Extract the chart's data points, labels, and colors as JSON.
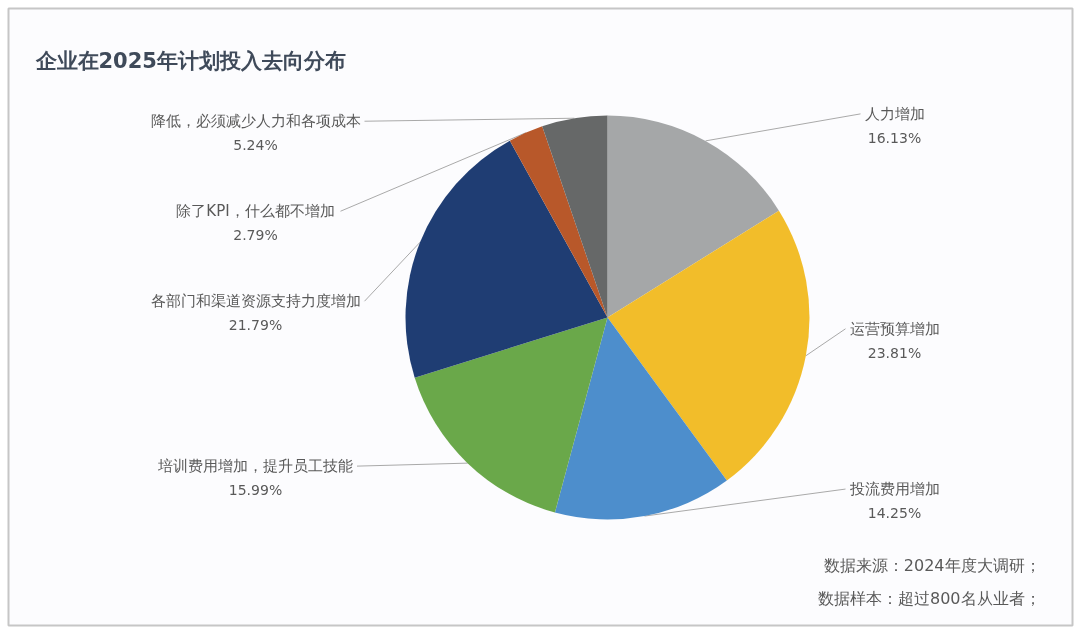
{
  "chart_data": {
    "type": "pie",
    "title": "企业在2025年计划投入去向分布",
    "categories": [
      "人力增加",
      "运营预算增加",
      "投流费用增加",
      "培训费用增加，提升员工技能",
      "各部门和渠道资源支持力度增加",
      "除了KPI，什么都不增加",
      "降低，必须减少人力和各项成本"
    ],
    "values": [
      16.13,
      23.81,
      14.25,
      15.99,
      21.79,
      2.79,
      5.24
    ],
    "value_labels": [
      "16.13%",
      "23.81%",
      "14.25%",
      "15.99%",
      "21.79%",
      "2.79%",
      "5.24%"
    ],
    "colors": [
      "#a5a7a8",
      "#f2bd2a",
      "#4d8ecc",
      "#6aa84a",
      "#1f3d73",
      "#b8582a",
      "#666868"
    ],
    "annotations": [
      "数据来源：2024年度大调研；",
      "数据样本：超过800名从业者；"
    ]
  }
}
